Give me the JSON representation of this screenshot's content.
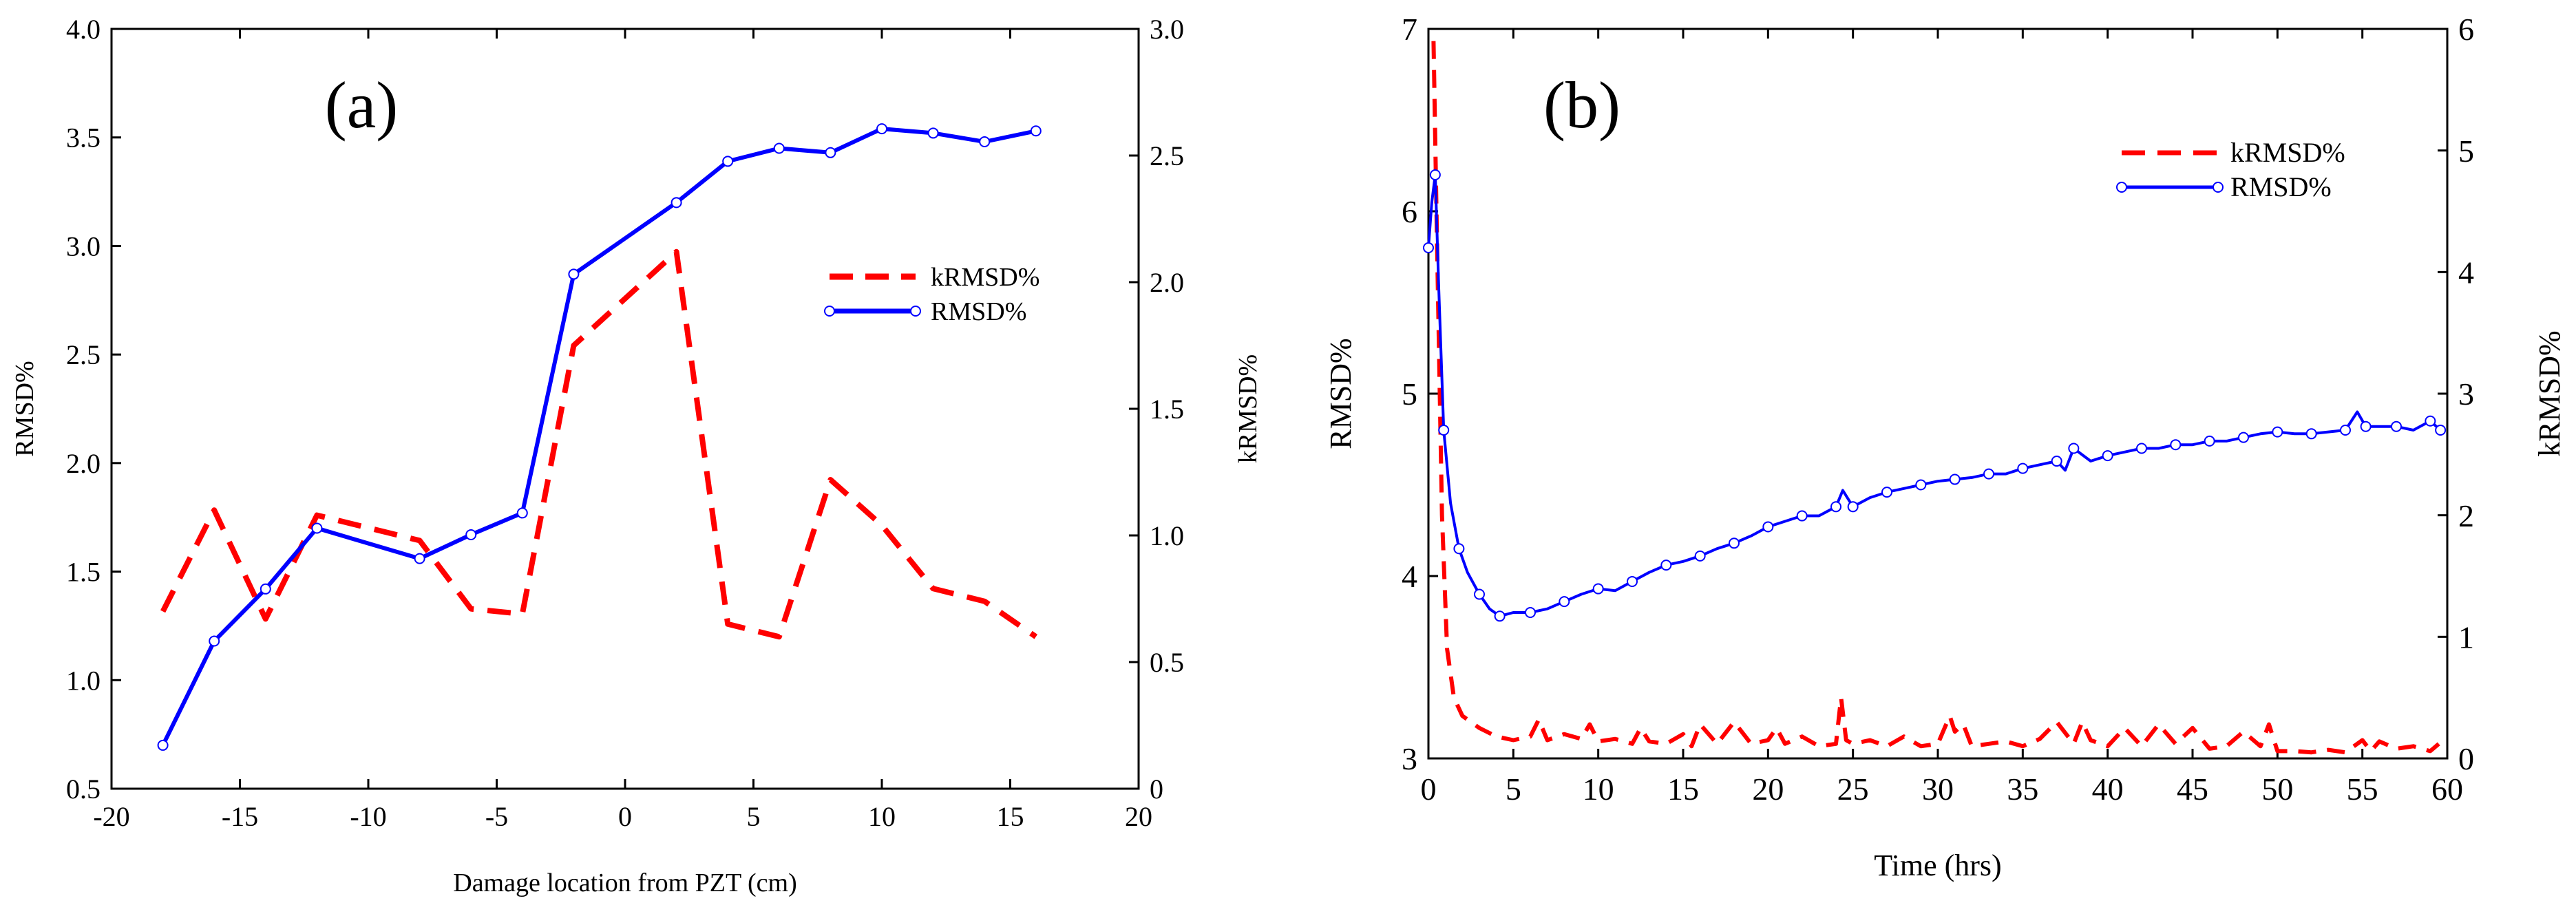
{
  "chart_data": [
    {
      "type": "line",
      "panel_label": "(a)",
      "xlabel": "Damage location from PZT (cm)",
      "ylabel_left": "RMSD%",
      "ylabel_right": "kRMSD%",
      "xlim": [
        -20,
        20
      ],
      "ylim_left": [
        0.5,
        4.0
      ],
      "ylim_right": [
        0.0,
        3.0
      ],
      "x_ticks": [
        -20,
        -15,
        -10,
        -5,
        0,
        5,
        10,
        15,
        20
      ],
      "x_tick_labels": [
        "-20",
        "-15",
        "-10",
        "-5",
        "0",
        "5",
        "10",
        "15",
        "20"
      ],
      "y_left_ticks": [
        0.5,
        1.0,
        1.5,
        2.0,
        2.5,
        3.0,
        3.5,
        4.0
      ],
      "y_left_tick_labels": [
        "0.5",
        "1.0",
        "1.5",
        "2.0",
        "2.5",
        "3.0",
        "3.5",
        "4.0"
      ],
      "y_right_ticks": [
        0,
        0.5,
        1.0,
        1.5,
        2.0,
        2.5,
        3.0
      ],
      "y_right_tick_labels": [
        "0",
        "0.5",
        "1.0",
        "1.5",
        "2.0",
        "2.5",
        "3.0"
      ],
      "legend": [
        "kRMSD%",
        "RMSD%"
      ],
      "series": [
        {
          "name": "kRMSD%",
          "axis": "right",
          "color": "#ff0000",
          "style": "dashed",
          "x": [
            -18,
            -16,
            -14,
            -12,
            -8,
            -6,
            -4,
            -2,
            2,
            4,
            6,
            8,
            10,
            12,
            14,
            16
          ],
          "values": [
            0.7,
            1.1,
            0.67,
            1.08,
            0.98,
            0.71,
            0.69,
            1.75,
            2.12,
            0.65,
            0.6,
            1.22,
            1.04,
            0.79,
            0.74,
            0.6
          ]
        },
        {
          "name": "RMSD%",
          "axis": "left",
          "color": "#0000ff",
          "style": "solid-marker",
          "x": [
            -18,
            -16,
            -14,
            -12,
            -8,
            -6,
            -4,
            -2,
            2,
            4,
            6,
            8,
            10,
            12,
            14,
            16
          ],
          "values": [
            0.7,
            1.18,
            1.42,
            1.7,
            1.56,
            1.67,
            1.77,
            2.87,
            3.2,
            3.39,
            3.45,
            3.43,
            3.54,
            3.52,
            3.48,
            3.53
          ]
        }
      ]
    },
    {
      "type": "line",
      "panel_label": "(b)",
      "xlabel": "Time (hrs)",
      "ylabel_left": "RMSD%",
      "ylabel_right": "kRMSD%",
      "xlim": [
        0,
        60
      ],
      "ylim_left": [
        3,
        7
      ],
      "ylim_right": [
        0,
        6
      ],
      "x_ticks": [
        0,
        5,
        10,
        15,
        20,
        25,
        30,
        35,
        40,
        45,
        50,
        55,
        60
      ],
      "x_tick_labels": [
        "0",
        "5",
        "10",
        "15",
        "20",
        "25",
        "30",
        "35",
        "40",
        "45",
        "50",
        "55",
        "60"
      ],
      "y_left_ticks": [
        3,
        4,
        5,
        6,
        7
      ],
      "y_left_tick_labels": [
        "3",
        "4",
        "5",
        "6",
        "7"
      ],
      "y_right_ticks": [
        0,
        1,
        2,
        3,
        4,
        5,
        6
      ],
      "y_right_tick_labels": [
        "0",
        "1",
        "2",
        "3",
        "4",
        "5",
        "6"
      ],
      "legend": [
        "kRMSD%",
        "RMSD%"
      ],
      "series": [
        {
          "name": "kRMSD%",
          "axis": "right",
          "color": "#ff0000",
          "style": "dashed",
          "x": [
            0.3,
            0.5,
            0.8,
            1.1,
            1.5,
            2,
            3,
            4,
            5,
            6,
            6.5,
            7,
            8,
            9,
            9.5,
            10,
            11,
            12,
            12.5,
            13,
            14,
            15,
            15.5,
            16,
            17,
            18,
            19,
            20,
            20.5,
            21,
            22,
            23,
            24,
            24.3,
            24.6,
            25,
            26,
            27,
            28,
            29,
            30,
            30.7,
            31,
            31.5,
            32,
            33,
            34,
            35,
            36,
            37,
            38,
            38.5,
            39,
            40,
            41,
            42,
            43,
            44,
            45,
            46,
            47,
            48,
            49,
            49.5,
            50,
            51,
            52,
            53,
            54,
            55,
            55.5,
            56,
            57,
            58,
            59,
            59.5
          ],
          "values": [
            5.9,
            4.3,
            2.0,
            0.9,
            0.5,
            0.35,
            0.25,
            0.18,
            0.15,
            0.18,
            0.32,
            0.15,
            0.2,
            0.16,
            0.28,
            0.14,
            0.16,
            0.12,
            0.25,
            0.14,
            0.12,
            0.2,
            0.1,
            0.28,
            0.12,
            0.3,
            0.12,
            0.15,
            0.25,
            0.12,
            0.18,
            0.1,
            0.12,
            0.5,
            0.15,
            0.12,
            0.15,
            0.1,
            0.18,
            0.1,
            0.12,
            0.35,
            0.22,
            0.28,
            0.1,
            0.12,
            0.14,
            0.1,
            0.16,
            0.3,
            0.12,
            0.3,
            0.15,
            0.1,
            0.25,
            0.1,
            0.28,
            0.12,
            0.25,
            0.08,
            0.1,
            0.22,
            0.1,
            0.28,
            0.06,
            0.06,
            0.05,
            0.07,
            0.05,
            0.15,
            0.06,
            0.14,
            0.08,
            0.1,
            0.06,
            0.12
          ]
        },
        {
          "name": "RMSD%",
          "axis": "left",
          "color": "#0000ff",
          "style": "solid-marker",
          "x": [
            0,
            0.2,
            0.4,
            0.6,
            0.9,
            1.3,
            1.8,
            2.3,
            3,
            3.6,
            4.2,
            5,
            6,
            7,
            8,
            9,
            10,
            11,
            12,
            13,
            14,
            15,
            16,
            17,
            18,
            19,
            20,
            21,
            22,
            23,
            24,
            24.4,
            25,
            26,
            27,
            28,
            29,
            30,
            31,
            32,
            33,
            34,
            35,
            36,
            37,
            37.5,
            38,
            39,
            40,
            41,
            42,
            43,
            44,
            45,
            46,
            47,
            48,
            49,
            50,
            51,
            52,
            53,
            54,
            54.7,
            55.2,
            56,
            57,
            58,
            59,
            59.6
          ],
          "values": [
            5.8,
            6.05,
            6.2,
            5.6,
            4.8,
            4.4,
            4.15,
            4.02,
            3.9,
            3.82,
            3.78,
            3.8,
            3.8,
            3.82,
            3.86,
            3.9,
            3.93,
            3.92,
            3.97,
            4.02,
            4.06,
            4.08,
            4.11,
            4.15,
            4.18,
            4.22,
            4.27,
            4.3,
            4.33,
            4.33,
            4.38,
            4.47,
            4.38,
            4.43,
            4.46,
            4.48,
            4.5,
            4.52,
            4.53,
            4.54,
            4.56,
            4.56,
            4.59,
            4.61,
            4.63,
            4.58,
            4.7,
            4.63,
            4.66,
            4.68,
            4.7,
            4.7,
            4.72,
            4.72,
            4.74,
            4.74,
            4.76,
            4.78,
            4.79,
            4.78,
            4.78,
            4.79,
            4.8,
            4.9,
            4.82,
            4.82,
            4.82,
            4.8,
            4.85,
            4.8
          ]
        }
      ]
    }
  ]
}
